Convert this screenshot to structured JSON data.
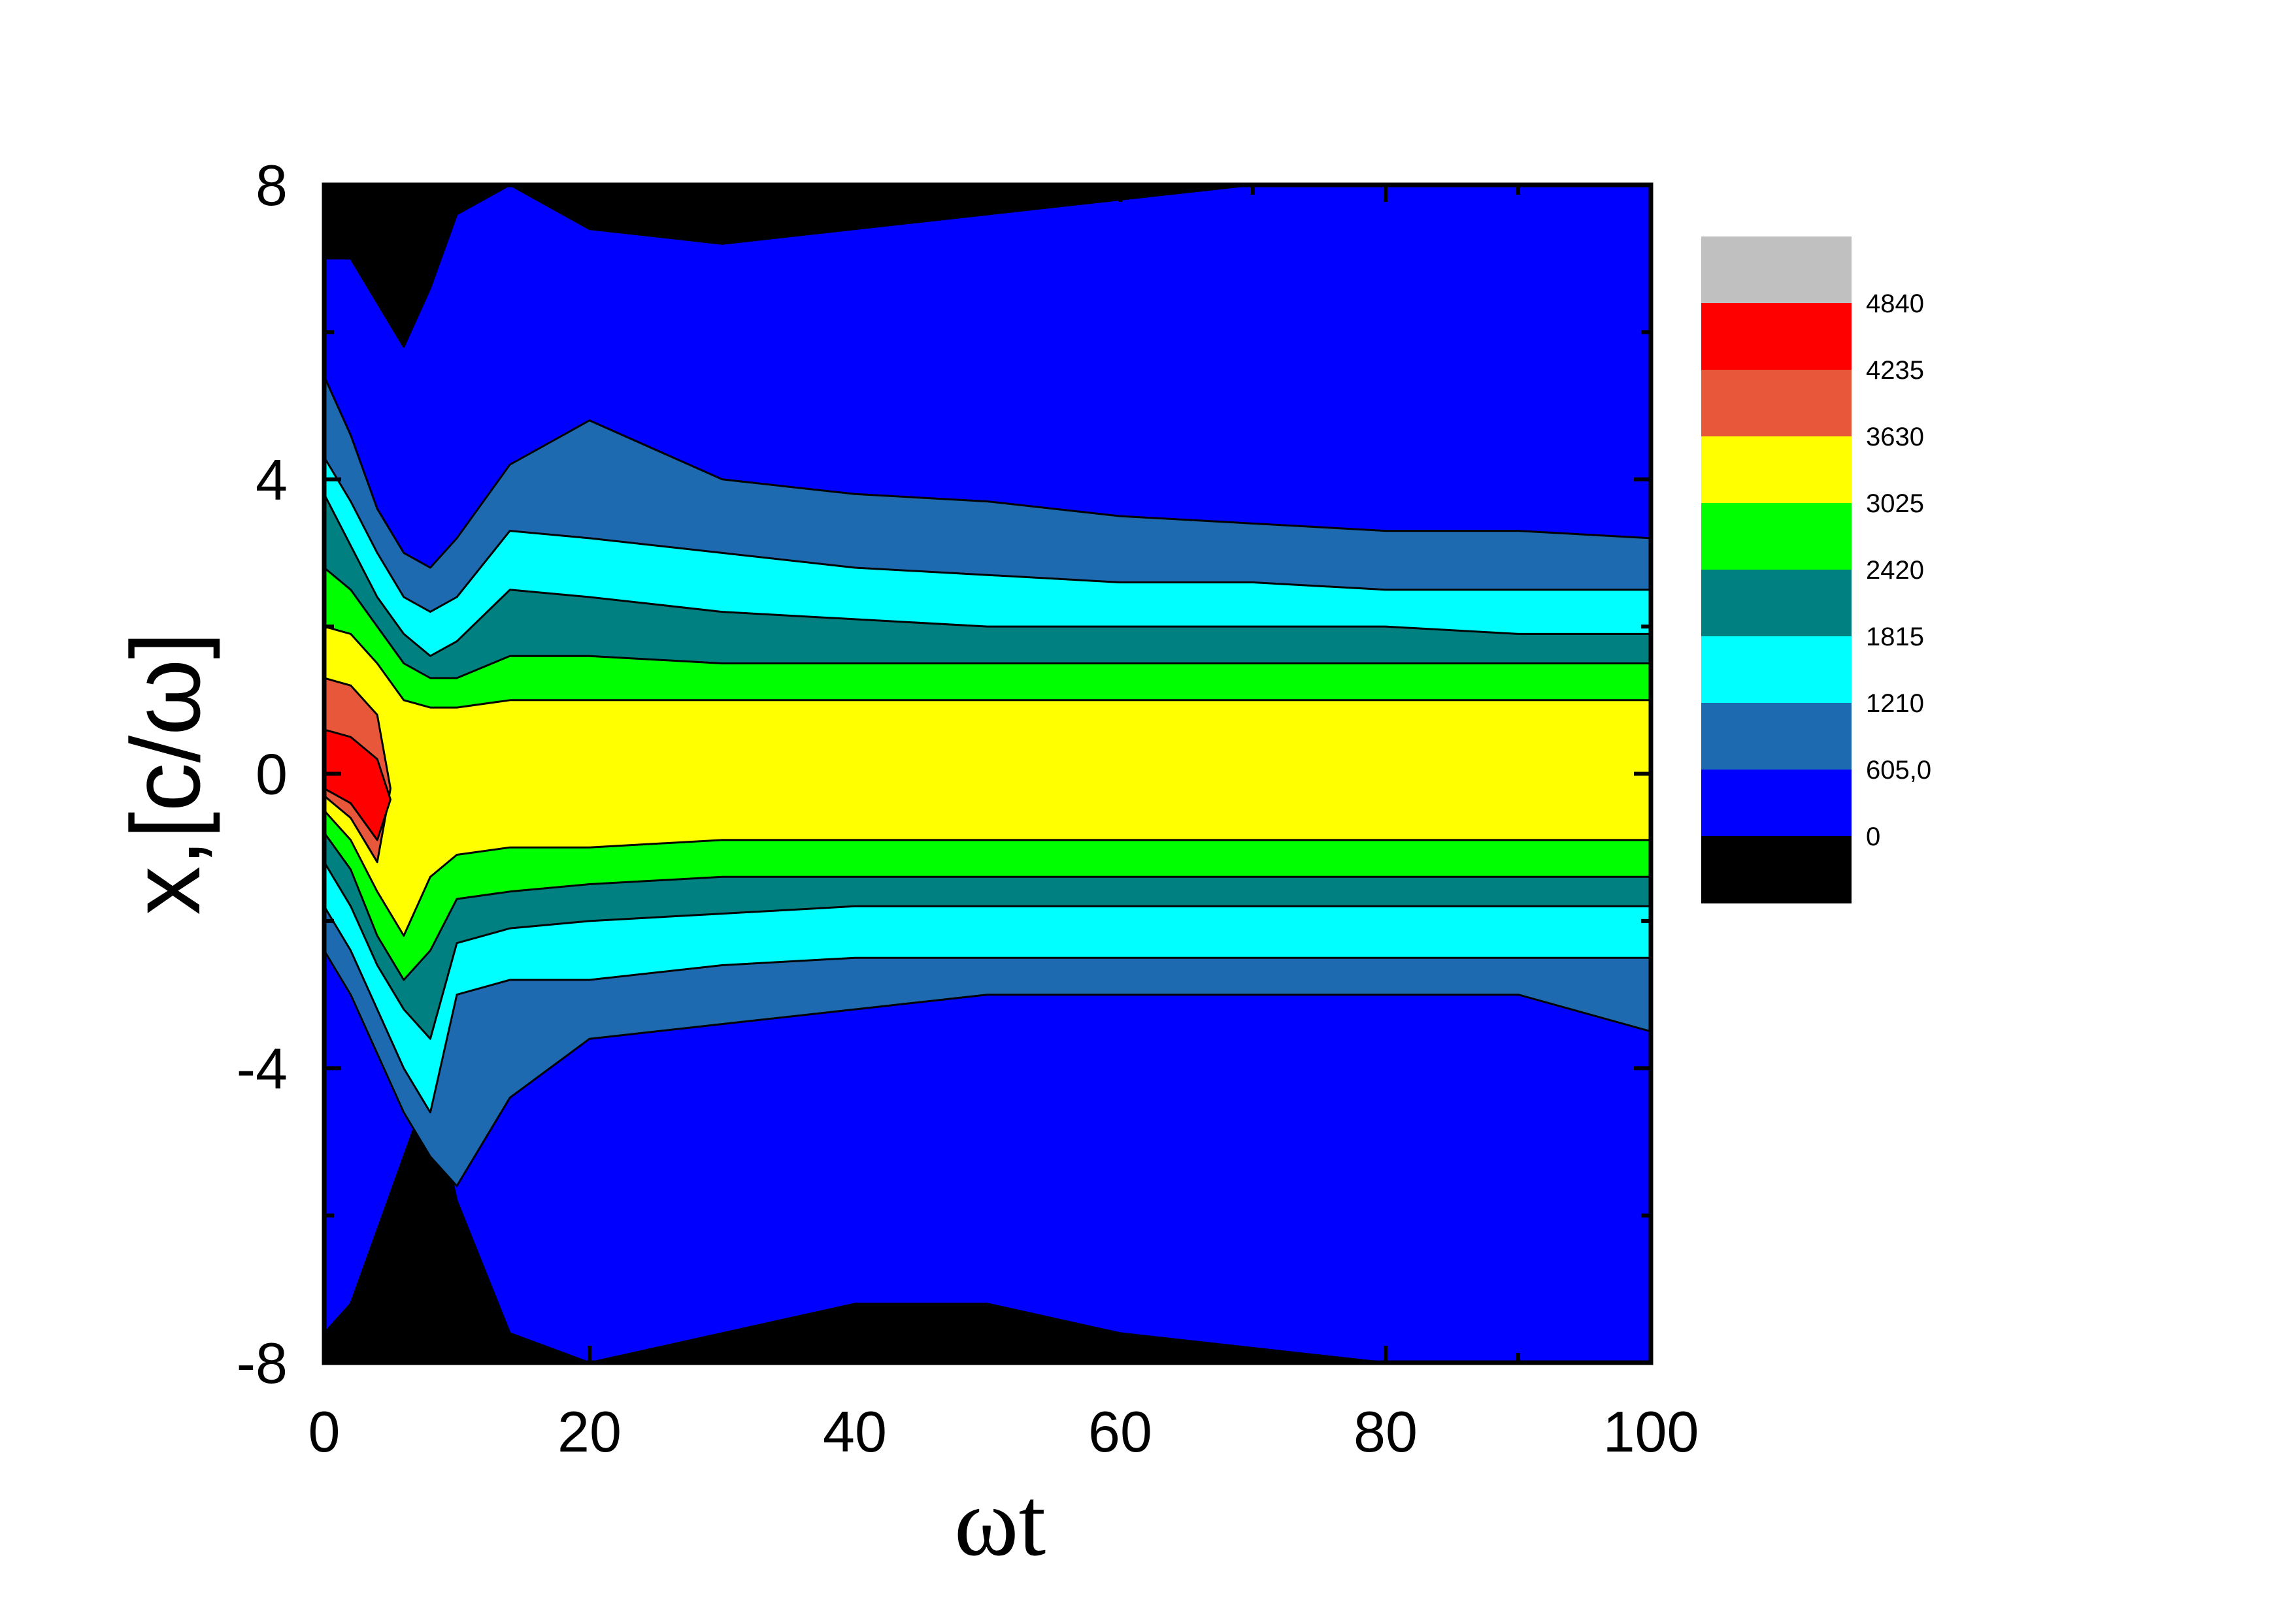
{
  "chart_data": {
    "type": "heatmap",
    "title": "",
    "xlabel": "ωt",
    "ylabel": "x,[c/ω]",
    "xlim": [
      0,
      100
    ],
    "ylim": [
      -8,
      8
    ],
    "x_ticks": [
      0,
      20,
      40,
      60,
      80,
      100
    ],
    "x_tick_labels": [
      "0",
      "20",
      "40",
      "60",
      "80",
      "100"
    ],
    "y_ticks": [
      -8,
      -4,
      0,
      4,
      8
    ],
    "y_tick_labels": [
      "-8",
      "-4",
      "0",
      "4",
      "8"
    ],
    "grid": false,
    "legend_placement": "right",
    "contour_levels": [
      0,
      605.0,
      1210,
      1815,
      2420,
      3025,
      3630,
      4235,
      4840
    ],
    "legend_labels": [
      "0",
      "605,0",
      "1210",
      "1815",
      "2420",
      "3025",
      "3630",
      "4235",
      "4840"
    ],
    "band_colors": [
      "#000000",
      "#0000ff",
      "#1e6ab0",
      "#00ffff",
      "#008080",
      "#00ff00",
      "#ffff00",
      "#e8573a",
      "#ff0000",
      "#c0c0c0"
    ],
    "band_boundaries": {
      "t": [
        0,
        2,
        4,
        6,
        8,
        10,
        14,
        20,
        30,
        40,
        50,
        60,
        70,
        80,
        90,
        100
      ],
      "upper_edges": [
        [
          7.0,
          7.0,
          6.4,
          5.8,
          6.6,
          7.6,
          8.0,
          7.4,
          7.2,
          7.4,
          7.6,
          7.8,
          8.0,
          8.0,
          8.0,
          8.0
        ],
        [
          5.4,
          4.6,
          3.6,
          3.0,
          2.8,
          3.2,
          4.2,
          4.8,
          4.0,
          3.8,
          3.7,
          3.5,
          3.4,
          3.3,
          3.3,
          3.2
        ],
        [
          4.3,
          3.7,
          3.0,
          2.4,
          2.2,
          2.4,
          3.3,
          3.2,
          3.0,
          2.8,
          2.7,
          2.6,
          2.6,
          2.5,
          2.5,
          2.5
        ],
        [
          3.8,
          3.1,
          2.4,
          1.9,
          1.6,
          1.8,
          2.5,
          2.4,
          2.2,
          2.1,
          2.0,
          2.0,
          2.0,
          2.0,
          1.9,
          1.9
        ],
        [
          2.8,
          2.5,
          2.0,
          1.5,
          1.3,
          1.3,
          1.6,
          1.6,
          1.5,
          1.5,
          1.5,
          1.5,
          1.5,
          1.5,
          1.5,
          1.5
        ],
        [
          2.0,
          1.9,
          1.5,
          1.0,
          0.9,
          0.9,
          1.0,
          1.0,
          1.0,
          1.0,
          1.0,
          1.0,
          1.0,
          1.0,
          1.0,
          1.0
        ],
        [
          1.3,
          1.2,
          0.8,
          null,
          null,
          null,
          null,
          null,
          null,
          null,
          null,
          null,
          null,
          null,
          null,
          null
        ],
        [
          0.6,
          0.5,
          0.2,
          null,
          null,
          null,
          null,
          null,
          null,
          null,
          null,
          null,
          null,
          null,
          null,
          null
        ]
      ],
      "lower_edges": [
        [
          -7.6,
          -7.2,
          -6.2,
          -5.2,
          -4.2,
          -5.8,
          -7.6,
          -8.0,
          -7.6,
          -7.2,
          -7.2,
          -7.6,
          -7.8,
          -8.0,
          -8.0,
          -8.0
        ],
        [
          -2.4,
          -3.0,
          -3.8,
          -4.6,
          -5.2,
          -5.6,
          -4.4,
          -3.6,
          -3.4,
          -3.2,
          -3.0,
          -3.0,
          -3.0,
          -3.0,
          -3.0,
          -3.5
        ],
        [
          -1.8,
          -2.4,
          -3.2,
          -4.0,
          -4.6,
          -3.0,
          -2.8,
          -2.8,
          -2.6,
          -2.5,
          -2.5,
          -2.5,
          -2.5,
          -2.5,
          -2.5,
          -2.5
        ],
        [
          -1.2,
          -1.8,
          -2.6,
          -3.2,
          -3.6,
          -2.3,
          -2.1,
          -2.0,
          -1.9,
          -1.8,
          -1.8,
          -1.8,
          -1.8,
          -1.8,
          -1.8,
          -1.8
        ],
        [
          -0.8,
          -1.3,
          -2.2,
          -2.8,
          -2.4,
          -1.7,
          -1.6,
          -1.5,
          -1.4,
          -1.4,
          -1.4,
          -1.4,
          -1.4,
          -1.4,
          -1.4,
          -1.4
        ],
        [
          -0.5,
          -0.9,
          -1.6,
          -2.2,
          -1.4,
          -1.1,
          -1.0,
          -1.0,
          -0.9,
          -0.9,
          -0.9,
          -0.9,
          -0.9,
          -0.9,
          -0.9,
          -0.9
        ],
        [
          -0.3,
          -0.6,
          -1.2,
          -1.6,
          null,
          null,
          null,
          null,
          null,
          null,
          null,
          null,
          null,
          null,
          null,
          null
        ],
        [
          -0.2,
          -0.4,
          -0.9,
          -1.2,
          null,
          null,
          null,
          null,
          null,
          null,
          null,
          null,
          null,
          null,
          null,
          null
        ]
      ]
    }
  }
}
